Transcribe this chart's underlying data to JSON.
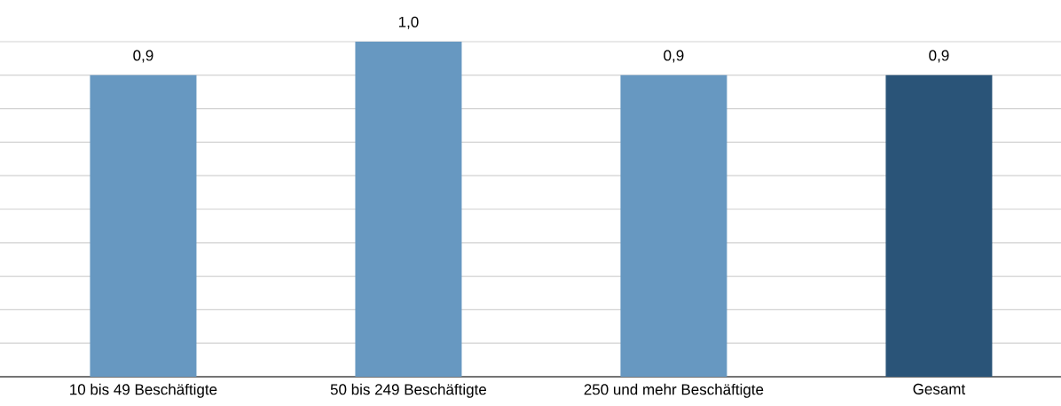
{
  "chart_data": {
    "type": "bar",
    "categories": [
      "10 bis 49 Beschäftigte",
      "50 bis 249 Beschäftigte",
      "250 und mehr Beschäftigte",
      "Gesamt"
    ],
    "values": [
      0.9,
      1.0,
      0.9,
      0.9
    ],
    "colors": [
      "#6798c1",
      "#6798c1",
      "#6798c1",
      "#2a5478"
    ],
    "value_labels": [
      "0,9",
      "1,0",
      "0,9",
      "0,9"
    ],
    "ylim": [
      0,
      1.0
    ],
    "grid": "y",
    "tick_labels": "x"
  }
}
